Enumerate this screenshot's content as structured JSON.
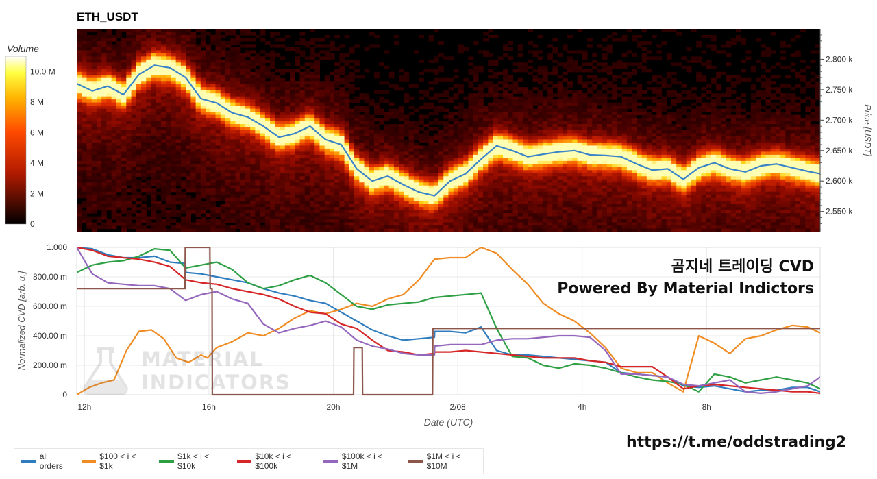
{
  "header": {
    "pair": "ETH_USDT"
  },
  "overlay": {
    "line1": "곰지네 트레이딩 CVD",
    "line2": "Powered By Material Indictors"
  },
  "footer": {
    "link": "https://t.me/oddstrading2"
  },
  "watermark": {
    "line1": "MATERIAL",
    "line2": "INDICATORS"
  },
  "colors": {
    "all_orders": "#2f7dbf",
    "b100_1k": "#f08c24",
    "b1k_10k": "#2ea043",
    "b10k_100k": "#d62728",
    "b100k_1m": "#9467bd",
    "b1m_10m": "#8c564b",
    "price_line": "#3a84c9"
  },
  "chart_data": [
    {
      "type": "heatmap",
      "title": "ETH_USDT",
      "colorbar": {
        "title": "Volume",
        "ticks": [
          "10.0 M",
          "8 M",
          "6 M",
          "4 M",
          "2 M",
          "0"
        ],
        "tick_values": [
          10,
          8,
          6,
          4,
          2,
          0
        ],
        "range": [
          0,
          11
        ]
      },
      "y_axis": {
        "label": "Price [USDT]",
        "ticks": [
          "2.800 k",
          "2.750 k",
          "2.700 k",
          "2.650 k",
          "2.600 k",
          "2.550 k"
        ],
        "tick_values": [
          2800,
          2750,
          2700,
          2650,
          2600,
          2550
        ],
        "range": [
          2517,
          2850
        ]
      },
      "x_range": [
        "11:45",
        "11:40 (+1d)"
      ],
      "price_line": {
        "x_hours": [
          0,
          0.5,
          1,
          1.5,
          2,
          2.5,
          3,
          3.5,
          4,
          4.5,
          5,
          5.5,
          6,
          6.5,
          7,
          7.5,
          8,
          8.5,
          9,
          9.5,
          10,
          10.5,
          11,
          11.5,
          12,
          12.5,
          13,
          13.5,
          14,
          14.5,
          15,
          15.5,
          16,
          16.5,
          17,
          17.5,
          18,
          18.5,
          19,
          19.5,
          20,
          20.5,
          21,
          21.5,
          22,
          22.5,
          23,
          23.5,
          23.9
        ],
        "price": [
          2760,
          2748,
          2756,
          2742,
          2775,
          2790,
          2786,
          2770,
          2735,
          2728,
          2712,
          2705,
          2690,
          2672,
          2678,
          2690,
          2668,
          2660,
          2620,
          2600,
          2608,
          2594,
          2582,
          2576,
          2600,
          2612,
          2636,
          2658,
          2650,
          2640,
          2644,
          2648,
          2650,
          2643,
          2642,
          2640,
          2628,
          2618,
          2620,
          2603,
          2622,
          2630,
          2620,
          2615,
          2625,
          2628,
          2622,
          2616,
          2612
        ]
      }
    },
    {
      "type": "line",
      "xlabel": "Date (UTC)",
      "ylabel": "Normalized CVD [arb. u.]",
      "x_ticks": [
        "12h",
        "16h",
        "20h",
        "2/08",
        "4h",
        "8h"
      ],
      "x_tick_hours": [
        0.25,
        4.25,
        8.25,
        12.25,
        16.25,
        20.25
      ],
      "y_ticks": [
        "1.000",
        "800.00 m",
        "600.00 m",
        "400.00 m",
        "200.00 m",
        "0"
      ],
      "y_tick_values": [
        1.0,
        0.8,
        0.6,
        0.4,
        0.2,
        0
      ],
      "ylim": [
        0,
        1
      ],
      "xlim": [
        0,
        23.9
      ],
      "series": [
        {
          "name": "all orders",
          "color": "#2f7dbf",
          "x": [
            0,
            0.5,
            1,
            1.5,
            2,
            2.5,
            3,
            3.5,
            3.51,
            4,
            4.5,
            5,
            5.5,
            6,
            6.5,
            7,
            7.5,
            8,
            8.5,
            9,
            9.5,
            10,
            10.5,
            11,
            11.5,
            11.51,
            12,
            12.5,
            13,
            13.5,
            14,
            14.5,
            15,
            15.5,
            16,
            16.5,
            17,
            17.5,
            18,
            18.5,
            19,
            19.5,
            20,
            20.5,
            21,
            21.5,
            22,
            22.5,
            23,
            23.5,
            23.9
          ],
          "y": [
            1.0,
            0.99,
            0.95,
            0.93,
            0.93,
            0.94,
            0.9,
            0.89,
            0.83,
            0.82,
            0.8,
            0.78,
            0.76,
            0.72,
            0.69,
            0.67,
            0.64,
            0.62,
            0.56,
            0.5,
            0.44,
            0.4,
            0.37,
            0.38,
            0.39,
            0.43,
            0.43,
            0.42,
            0.46,
            0.3,
            0.27,
            0.27,
            0.26,
            0.25,
            0.24,
            0.23,
            0.22,
            0.15,
            0.14,
            0.13,
            0.12,
            0.06,
            0.05,
            0.06,
            0.04,
            0.02,
            0.03,
            0.03,
            0.05,
            0.05,
            0.02
          ]
        },
        {
          "name": "$100 < i < $1k",
          "color": "#f08c24",
          "x": [
            0,
            0.4,
            0.8,
            1.2,
            1.6,
            2,
            2.4,
            2.8,
            3.2,
            3.6,
            4,
            4.2,
            4.5,
            5,
            5.5,
            6,
            6.5,
            7,
            7.5,
            8,
            8.5,
            9,
            9.5,
            10,
            10.5,
            11,
            11.5,
            12,
            12.5,
            13,
            13.5,
            14,
            14.5,
            15,
            15.5,
            16,
            16.5,
            17,
            17.5,
            18,
            18.5,
            19,
            19.5,
            20,
            20.5,
            21,
            21.5,
            22,
            22.5,
            23,
            23.5,
            23.9
          ],
          "y": [
            0.0,
            0.05,
            0.08,
            0.1,
            0.3,
            0.43,
            0.44,
            0.38,
            0.25,
            0.22,
            0.27,
            0.25,
            0.32,
            0.36,
            0.42,
            0.4,
            0.45,
            0.52,
            0.57,
            0.55,
            0.58,
            0.62,
            0.6,
            0.65,
            0.68,
            0.78,
            0.92,
            0.93,
            0.93,
            1.0,
            0.96,
            0.85,
            0.75,
            0.62,
            0.55,
            0.5,
            0.42,
            0.32,
            0.18,
            0.15,
            0.15,
            0.08,
            0.02,
            0.4,
            0.35,
            0.28,
            0.38,
            0.4,
            0.44,
            0.47,
            0.46,
            0.42
          ]
        },
        {
          "name": "$1k < i < $10k",
          "color": "#2ea043",
          "x": [
            0,
            0.5,
            1,
            1.5,
            2,
            2.5,
            3,
            3.5,
            4,
            4.5,
            5,
            5.5,
            6,
            6.5,
            7,
            7.5,
            8,
            8.5,
            9,
            9.5,
            10,
            10.5,
            11,
            11.5,
            12,
            12.5,
            13,
            13.5,
            14,
            14.5,
            15,
            15.5,
            16,
            16.5,
            17,
            17.5,
            18,
            18.5,
            19,
            19.5,
            20,
            20.5,
            21,
            21.5,
            22,
            22.5,
            23,
            23.5,
            23.9
          ],
          "y": [
            0.83,
            0.88,
            0.9,
            0.91,
            0.94,
            0.99,
            0.98,
            0.86,
            0.88,
            0.9,
            0.85,
            0.76,
            0.72,
            0.74,
            0.78,
            0.81,
            0.76,
            0.68,
            0.6,
            0.58,
            0.61,
            0.62,
            0.63,
            0.66,
            0.67,
            0.68,
            0.69,
            0.45,
            0.26,
            0.25,
            0.2,
            0.18,
            0.21,
            0.2,
            0.18,
            0.15,
            0.12,
            0.1,
            0.09,
            0.07,
            0.02,
            0.14,
            0.12,
            0.08,
            0.1,
            0.12,
            0.1,
            0.08,
            0.04
          ]
        },
        {
          "name": "$10k < i < $100k",
          "color": "#d62728",
          "x": [
            0,
            0.5,
            1,
            1.5,
            2,
            2.5,
            3,
            3.5,
            4,
            4.5,
            5,
            5.5,
            6,
            6.5,
            7,
            7.5,
            8,
            8.5,
            9,
            9.5,
            10,
            10.5,
            11,
            11.5,
            11.51,
            12,
            12.5,
            13,
            13.5,
            14,
            14.5,
            15,
            15.5,
            16,
            16.5,
            17,
            17.5,
            18,
            18.5,
            19,
            19.5,
            20,
            20.5,
            21,
            21.5,
            22,
            22.5,
            23,
            23.5,
            23.9
          ],
          "y": [
            1.0,
            0.98,
            0.94,
            0.93,
            0.92,
            0.9,
            0.87,
            0.78,
            0.76,
            0.75,
            0.72,
            0.7,
            0.68,
            0.65,
            0.6,
            0.56,
            0.55,
            0.48,
            0.45,
            0.37,
            0.3,
            0.29,
            0.27,
            0.28,
            0.29,
            0.29,
            0.3,
            0.29,
            0.28,
            0.27,
            0.26,
            0.25,
            0.25,
            0.25,
            0.23,
            0.22,
            0.19,
            0.19,
            0.19,
            0.12,
            0.04,
            0.06,
            0.07,
            0.06,
            0.05,
            0.04,
            0.03,
            0.02,
            0.02,
            0.01
          ]
        },
        {
          "name": "$100k < i < $1M",
          "color": "#9467bd",
          "x": [
            0,
            0.5,
            1,
            1.5,
            2,
            2.5,
            3,
            3.5,
            4,
            4.5,
            5,
            5.5,
            6,
            6.5,
            7,
            7.5,
            8,
            8.5,
            9,
            9.5,
            10,
            10.5,
            11,
            11.5,
            11.51,
            12,
            12.5,
            13,
            13.5,
            14,
            14.5,
            15,
            15.5,
            16,
            16.5,
            17,
            17.5,
            18,
            18.5,
            19,
            19.5,
            20,
            20.5,
            21,
            21.5,
            22,
            22.5,
            23,
            23.5,
            23.9
          ],
          "y": [
            1.0,
            0.82,
            0.76,
            0.75,
            0.74,
            0.74,
            0.72,
            0.64,
            0.68,
            0.7,
            0.65,
            0.62,
            0.48,
            0.42,
            0.45,
            0.47,
            0.5,
            0.46,
            0.37,
            0.33,
            0.31,
            0.28,
            0.27,
            0.27,
            0.33,
            0.34,
            0.34,
            0.34,
            0.37,
            0.38,
            0.38,
            0.39,
            0.4,
            0.4,
            0.39,
            0.3,
            0.14,
            0.14,
            0.13,
            0.12,
            0.07,
            0.06,
            0.08,
            0.1,
            0.02,
            0.01,
            0.02,
            0.04,
            0.06,
            0.12
          ]
        },
        {
          "name": "$1M < i < $10M",
          "color": "#8c564b",
          "x": [
            0,
            3.48,
            3.49,
            4.28,
            4.29,
            4.35,
            4.36,
            8.9,
            8.91,
            9.18,
            9.19,
            11.44,
            11.45,
            23.9
          ],
          "y": [
            0.72,
            0.72,
            1.0,
            1.0,
            0.72,
            0.72,
            0.0,
            0.0,
            0.32,
            0.32,
            0.0,
            0.0,
            0.45,
            0.45
          ]
        }
      ]
    }
  ]
}
